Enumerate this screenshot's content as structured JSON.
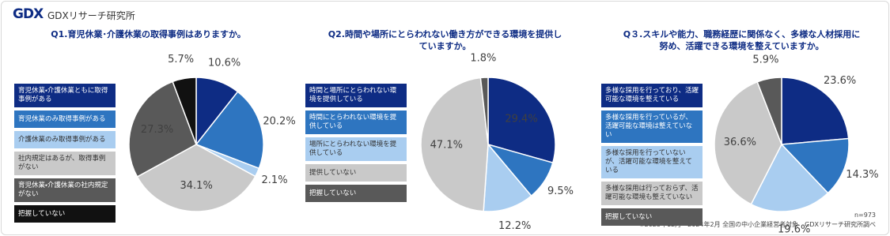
{
  "header": {
    "logo": "GDX",
    "brand": "GDXリサーチ研究所"
  },
  "chart_data": [
    {
      "type": "pie",
      "title": "Q1.育児休業･介護休業の取得事例はありますか。",
      "categories": [
        "育児休業・介護休業ともに取得事例がある",
        "育児休業のみ取得事例がある",
        "介護休業のみ取得事例がある",
        "社内規定はあるが、取得事例がない",
        "育児休業・介護休業の社内規定がない",
        "把握していない"
      ],
      "values": [
        10.6,
        20.2,
        2.1,
        34.1,
        27.3,
        5.7
      ],
      "value_labels": [
        "10.6%",
        "20.2%",
        "2.1%",
        "34.1%",
        "27.3%",
        "5.7%"
      ],
      "colors": [
        "#0e2c84",
        "#2e75c0",
        "#a9cdf0",
        "#c9c9c9",
        "#595959",
        "#111111"
      ]
    },
    {
      "type": "pie",
      "title": "Q2.時間や場所にとらわれない働き方ができる環境を提供していますか。",
      "categories": [
        "時間と場所にとらわれない環境を提供している",
        "時間にとらわれない環境を提供している",
        "場所にとらわれない環境を提供している",
        "提供していない",
        "把握していない"
      ],
      "values": [
        29.4,
        9.5,
        12.2,
        47.1,
        1.8
      ],
      "value_labels": [
        "29.4%",
        "9.5%",
        "12.2%",
        "47.1%",
        "1.8%"
      ],
      "colors": [
        "#0e2c84",
        "#2e75c0",
        "#a9cdf0",
        "#c9c9c9",
        "#595959"
      ]
    },
    {
      "type": "pie",
      "title": "Q３.スキルや能力、職務経歴に関係なく、多様な人材採用に努め、活躍できる環境を整えていますか。",
      "categories": [
        "多様な採用を行っており、活躍可能な環境を整えている",
        "多様な採用を行っているが、活躍可能な環境は整えていない",
        "多様な採用を行っていないが、活躍可能な環境を整えている",
        "多様な採用は行っておらず、活躍可能な環境も整えていない",
        "把握していない"
      ],
      "values": [
        23.6,
        14.3,
        19.6,
        36.6,
        5.9
      ],
      "value_labels": [
        "23.6%",
        "14.3%",
        "19.6%",
        "36.6%",
        "5.9%"
      ],
      "colors": [
        "#0e2c84",
        "#2e75c0",
        "#a9cdf0",
        "#c9c9c9",
        "#595959"
      ]
    }
  ],
  "footer": {
    "sample": "n=973",
    "note": "※2023年12月～2024年2月 全国の中小企業経営者対象　GDXリサーチ研究所調べ"
  }
}
